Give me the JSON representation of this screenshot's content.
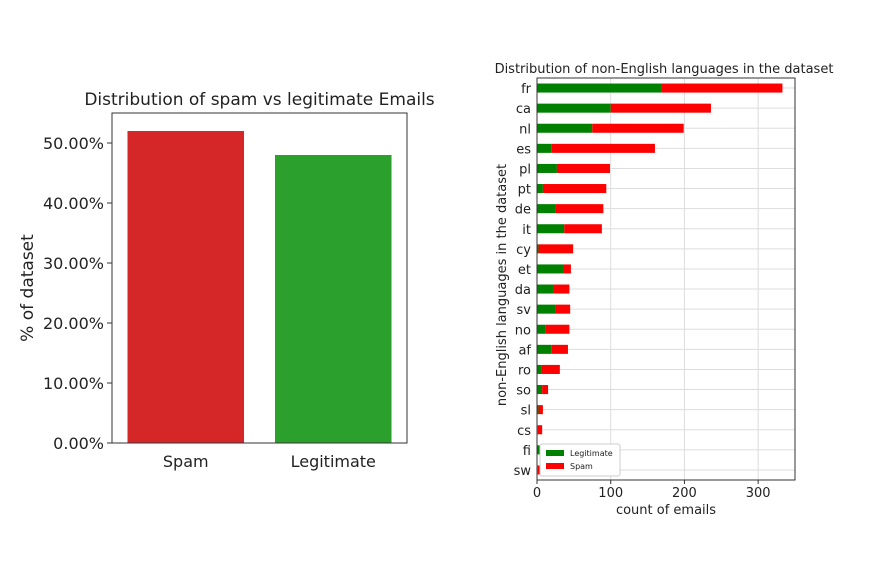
{
  "chart_data": [
    {
      "type": "bar",
      "title": "Distribution of spam vs legitimate Emails",
      "xlabel": "",
      "ylabel": "% of dataset",
      "categories": [
        "Spam",
        "Legitimate"
      ],
      "values": [
        52.0,
        48.0
      ],
      "colors": [
        "#d62728",
        "#2ca02c"
      ],
      "ylim": [
        0,
        55
      ],
      "yticks": [
        0,
        10,
        20,
        30,
        40,
        50
      ],
      "ytick_labels": [
        "0.00%",
        "10.00%",
        "20.00%",
        "30.00%",
        "40.00%",
        "50.00%"
      ],
      "grid": false
    },
    {
      "type": "bar",
      "orientation": "horizontal",
      "stacked": true,
      "title": "Distribution of non-English languages in the dataset",
      "xlabel": "count of emails",
      "ylabel": "non-English languages in the dataset",
      "categories": [
        "fr",
        "ca",
        "nl",
        "es",
        "pl",
        "pt",
        "de",
        "it",
        "cy",
        "et",
        "da",
        "sv",
        "no",
        "af",
        "ro",
        "so",
        "sl",
        "cs",
        "fi",
        "sw"
      ],
      "series": [
        {
          "name": "Legitimate",
          "color": "#008000",
          "values": [
            169,
            100,
            75,
            20,
            27,
            8,
            25,
            37,
            2,
            36,
            23,
            25,
            12,
            20,
            6,
            7,
            2,
            1,
            4,
            1
          ]
        },
        {
          "name": "Spam",
          "color": "#ff0000",
          "values": [
            164,
            136,
            124,
            140,
            72,
            86,
            65,
            51,
            47,
            10,
            21,
            20,
            32,
            22,
            25,
            8,
            6,
            6,
            0,
            4
          ]
        }
      ],
      "xlim": [
        0,
        350
      ],
      "xticks": [
        0,
        100,
        200,
        300
      ],
      "legend": "bottom-left",
      "grid": true
    }
  ]
}
